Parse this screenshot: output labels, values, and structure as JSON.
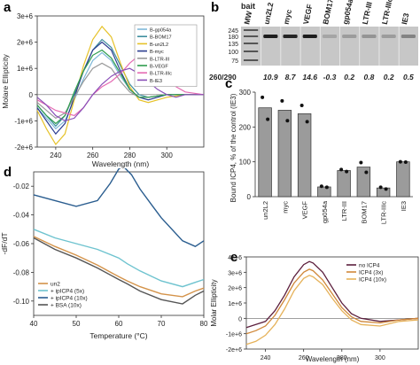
{
  "panels": {
    "a": {
      "letter": "a"
    },
    "b": {
      "letter": "b"
    },
    "c": {
      "letter": "c"
    },
    "d": {
      "letter": "d"
    },
    "e": {
      "letter": "e"
    }
  },
  "chart_data": [
    {
      "panel": "a",
      "type": "line",
      "xlabel": "Wavelength (nm)",
      "ylabel": "Molare Ellipticity",
      "xlim": [
        230,
        320
      ],
      "ylim": [
        -2000000,
        3000000
      ],
      "xticks": [
        240,
        260,
        280,
        300
      ],
      "xtick_labels": [
        "240",
        "260",
        "280",
        "300"
      ],
      "yticks": [
        -2000000,
        -1000000,
        0,
        1000000,
        2000000,
        3000000
      ],
      "ytick_labels": [
        "-2e+6",
        "-1e+6",
        "0",
        "1e+6",
        "2e+6",
        "3e+6"
      ],
      "legend_position": "top-right",
      "series": [
        {
          "name": "B-gp054a",
          "color": "#7fb8d8",
          "x": [
            230,
            235,
            240,
            245,
            250,
            255,
            260,
            265,
            270,
            275,
            280,
            285,
            290,
            300,
            310,
            320
          ],
          "y": [
            -500000,
            -900000,
            -1300000,
            -1000000,
            -200000,
            600000,
            1300000,
            1600000,
            1300000,
            700000,
            200000,
            -100000,
            -100000,
            0,
            0,
            0
          ]
        },
        {
          "name": "B-BOM17",
          "color": "#3f8f9e",
          "x": [
            230,
            235,
            240,
            245,
            250,
            255,
            260,
            265,
            270,
            275,
            280,
            285,
            290,
            300,
            310,
            320
          ],
          "y": [
            -400000,
            -800000,
            -1200000,
            -800000,
            0,
            900000,
            1700000,
            2100000,
            1800000,
            1100000,
            400000,
            0,
            -100000,
            0,
            0,
            0
          ]
        },
        {
          "name": "B-un2L2",
          "color": "#e6c229",
          "x": [
            230,
            235,
            240,
            245,
            250,
            255,
            260,
            265,
            270,
            275,
            280,
            285,
            290,
            300,
            310,
            320
          ],
          "y": [
            -600000,
            -1300000,
            -1900000,
            -1500000,
            -200000,
            1100000,
            2100000,
            2600000,
            2200000,
            1200000,
            300000,
            -200000,
            -300000,
            -100000,
            0,
            0
          ]
        },
        {
          "name": "B-myc",
          "color": "#2c3e90",
          "x": [
            230,
            235,
            240,
            245,
            250,
            255,
            260,
            265,
            270,
            275,
            280,
            285,
            290,
            300,
            310,
            320
          ],
          "y": [
            -500000,
            -1000000,
            -1500000,
            -1100000,
            -100000,
            900000,
            1700000,
            2000000,
            1700000,
            900000,
            200000,
            -100000,
            -200000,
            0,
            0,
            0
          ]
        },
        {
          "name": "B-LTR-III",
          "color": "#9a9a9a",
          "x": [
            230,
            235,
            240,
            245,
            250,
            255,
            260,
            265,
            270,
            275,
            280,
            285,
            290,
            300,
            310,
            320
          ],
          "y": [
            -300000,
            -600000,
            -900000,
            -700000,
            -100000,
            500000,
            1000000,
            1200000,
            1000000,
            500000,
            100000,
            -100000,
            -100000,
            0,
            0,
            0
          ]
        },
        {
          "name": "B-VEGF",
          "color": "#2e9d4e",
          "x": [
            230,
            235,
            240,
            245,
            250,
            255,
            260,
            265,
            270,
            275,
            280,
            285,
            290,
            300,
            310,
            320
          ],
          "y": [
            -400000,
            -800000,
            -1100000,
            -800000,
            100000,
            900000,
            1500000,
            1700000,
            1400000,
            800000,
            200000,
            -100000,
            -100000,
            0,
            0,
            0
          ]
        },
        {
          "name": "B-LTR-IIIc",
          "color": "#e56bb3",
          "x": [
            230,
            235,
            240,
            245,
            250,
            255,
            260,
            265,
            270,
            275,
            280,
            285,
            290,
            295,
            300,
            305,
            310,
            320
          ],
          "y": [
            -200000,
            -400000,
            -600000,
            -700000,
            -800000,
            -500000,
            0,
            300000,
            500000,
            800000,
            1200000,
            1500000,
            1600000,
            1300000,
            700000,
            300000,
            100000,
            0
          ]
        },
        {
          "name": "B-IE3",
          "color": "#8a4fb8",
          "x": [
            230,
            235,
            240,
            245,
            250,
            255,
            260,
            265,
            270,
            275,
            280,
            285,
            290,
            295,
            300,
            305,
            310,
            320
          ],
          "y": [
            -100000,
            -400000,
            -800000,
            -1000000,
            -900000,
            -500000,
            0,
            400000,
            700000,
            900000,
            1000000,
            800000,
            500000,
            200000,
            0,
            -100000,
            0,
            0
          ]
        }
      ]
    },
    {
      "panel": "b",
      "type": "table",
      "bait_label": "bait",
      "marker_label": "MW",
      "mw_marks": [
        "245",
        "180",
        "135",
        "100",
        "75"
      ],
      "mw_values": [
        245,
        180,
        135,
        100,
        75
      ],
      "lanes": [
        "un2L2",
        "myc",
        "VEGF",
        "BOM17",
        "gp054a",
        "LTR-III",
        "LTR-IIIc",
        "IE3"
      ],
      "ratio_label": "260/290",
      "ratios": [
        "10.9",
        "8.7",
        "14.6",
        "-0.3",
        "0.2",
        "0.8",
        "0.2",
        "0.5"
      ]
    },
    {
      "panel": "c",
      "type": "bar",
      "ylabel": "Bound ICP4, % of the control (IE3)",
      "ylim": [
        0,
        300
      ],
      "yticks": [
        0,
        100,
        200,
        300
      ],
      "ytick_labels": [
        "0",
        "100",
        "200",
        "300"
      ],
      "categories": [
        "un2L2",
        "myc",
        "VEGF",
        "gp054a",
        "LTR-III",
        "BOM17",
        "LTR-IIIc",
        "IE3"
      ],
      "values": [
        255,
        248,
        238,
        28,
        75,
        85,
        25,
        100
      ],
      "points": [
        [
          285,
          222
        ],
        [
          275,
          218
        ],
        [
          262,
          215
        ],
        [
          30,
          27
        ],
        [
          78,
          72
        ],
        [
          98,
          70
        ],
        [
          27,
          22
        ],
        [
          100,
          99
        ]
      ]
    },
    {
      "panel": "d",
      "type": "line",
      "xlabel": "Temperature (°C)",
      "ylabel": "-dF/dT",
      "xlim": [
        40,
        80
      ],
      "ylim": [
        -0.11,
        -0.01
      ],
      "xticks": [
        40,
        50,
        60,
        70,
        80
      ],
      "xtick_labels": [
        "40",
        "50",
        "60",
        "70",
        "80"
      ],
      "yticks": [
        -0.02,
        -0.04,
        -0.06,
        -0.08,
        -0.1
      ],
      "ytick_labels": [
        "-0.02",
        "-0.04",
        "-0.06",
        "-0.08",
        "-0.10"
      ],
      "legend_position": "bottom-left",
      "series": [
        {
          "name": "un2",
          "color": "#d4934a",
          "x": [
            40,
            45,
            50,
            55,
            60,
            62,
            65,
            70,
            75,
            78,
            80
          ],
          "y": [
            -0.055,
            -0.062,
            -0.068,
            -0.075,
            -0.083,
            -0.086,
            -0.09,
            -0.095,
            -0.097,
            -0.093,
            -0.091
          ]
        },
        {
          "name": "+ ipICP4 (5x)",
          "color": "#6ec3cf",
          "x": [
            40,
            45,
            50,
            55,
            60,
            62,
            65,
            70,
            75,
            78,
            80
          ],
          "y": [
            -0.05,
            -0.056,
            -0.06,
            -0.064,
            -0.07,
            -0.074,
            -0.079,
            -0.086,
            -0.09,
            -0.087,
            -0.085
          ]
        },
        {
          "name": "+ ipICP4 (10x)",
          "color": "#2a5d8f",
          "x": [
            40,
            45,
            50,
            55,
            58,
            60,
            61,
            63,
            65,
            68,
            70,
            75,
            78,
            80
          ],
          "y": [
            -0.026,
            -0.03,
            -0.034,
            -0.03,
            -0.018,
            -0.008,
            -0.006,
            -0.012,
            -0.022,
            -0.034,
            -0.042,
            -0.058,
            -0.062,
            -0.058
          ]
        },
        {
          "name": "+ BSA (10x)",
          "color": "#555555",
          "x": [
            40,
            45,
            50,
            55,
            60,
            62,
            65,
            70,
            75,
            78,
            80
          ],
          "y": [
            -0.056,
            -0.064,
            -0.07,
            -0.077,
            -0.085,
            -0.088,
            -0.093,
            -0.099,
            -0.102,
            -0.096,
            -0.093
          ]
        }
      ]
    },
    {
      "panel": "e",
      "type": "line",
      "xlabel": "Wavelength (nm)",
      "ylabel": "Molar Ellipticity",
      "xlim": [
        230,
        320
      ],
      "ylim": [
        -2000000,
        4000000
      ],
      "xticks": [
        240,
        260,
        280,
        300
      ],
      "xtick_labels": [
        "240",
        "260",
        "280",
        "300"
      ],
      "yticks": [
        -2000000,
        -1000000,
        0,
        1000000,
        2000000,
        3000000,
        4000000
      ],
      "ytick_labels": [
        "-2e+6",
        "-1e+6",
        "0",
        "1e+6",
        "2e+6",
        "3e+6",
        "4e+6"
      ],
      "legend_position": "top-right",
      "series": [
        {
          "name": "no ICP4",
          "color": "#5c1f3d",
          "x": [
            230,
            235,
            240,
            245,
            250,
            255,
            260,
            263,
            265,
            270,
            275,
            280,
            285,
            290,
            300,
            310,
            320
          ],
          "y": [
            -600000,
            -400000,
            -200000,
            500000,
            1500000,
            2700000,
            3500000,
            3700000,
            3600000,
            3000000,
            2000000,
            1000000,
            300000,
            0,
            -200000,
            -100000,
            0
          ]
        },
        {
          "name": "ICP4 (3x)",
          "color": "#d0883a",
          "x": [
            230,
            235,
            240,
            245,
            250,
            255,
            260,
            263,
            265,
            270,
            275,
            280,
            285,
            290,
            300,
            310,
            320
          ],
          "y": [
            -1000000,
            -800000,
            -500000,
            200000,
            1200000,
            2300000,
            3000000,
            3200000,
            3100000,
            2500000,
            1600000,
            700000,
            100000,
            -200000,
            -300000,
            -100000,
            0
          ]
        },
        {
          "name": "ICP4 (10x)",
          "color": "#e6b25a",
          "x": [
            230,
            235,
            240,
            245,
            250,
            255,
            260,
            263,
            265,
            270,
            275,
            280,
            285,
            290,
            300,
            310,
            320
          ],
          "y": [
            -1700000,
            -1500000,
            -1100000,
            -400000,
            600000,
            1800000,
            2600000,
            2800000,
            2700000,
            2200000,
            1300000,
            500000,
            -100000,
            -400000,
            -500000,
            -200000,
            -100000
          ]
        }
      ]
    }
  ]
}
